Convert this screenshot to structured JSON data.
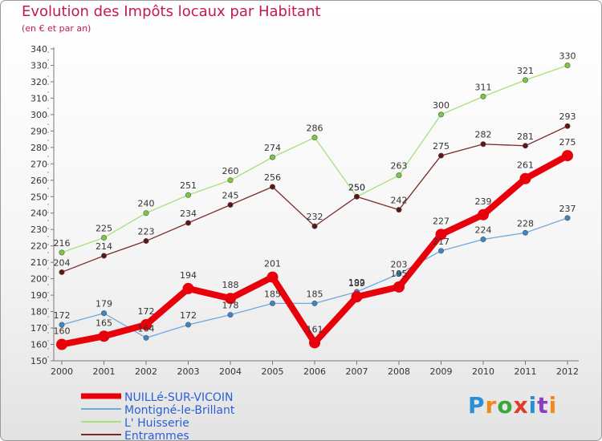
{
  "header": {
    "title": "Evolution des Impôts locaux par Habitant",
    "subtitle": "(en € et par an)"
  },
  "logo": {
    "text": "Proxiti",
    "colors": [
      "#2b8fd6",
      "#f08a1c",
      "#3aa83a",
      "#e23b2c",
      "#2b8fd6",
      "#8a3fbf",
      "#f08a1c"
    ]
  },
  "chart_data": {
    "type": "line",
    "x": [
      "2000",
      "2001",
      "2002",
      "2003",
      "2004",
      "2005",
      "2006",
      "2007",
      "2008",
      "2009",
      "2010",
      "2011",
      "2012"
    ],
    "ylim": [
      150,
      340
    ],
    "yticks": [
      150,
      160,
      170,
      180,
      190,
      200,
      210,
      220,
      230,
      240,
      250,
      260,
      270,
      280,
      290,
      300,
      310,
      320,
      330,
      340
    ],
    "grid": false,
    "legend_position": "bottom-left",
    "series": [
      {
        "name": "NUILLé-SUR-VICOIN",
        "color": "#e8000b",
        "marker": "#e8000b",
        "emphasis": true,
        "values": [
          160,
          165,
          172,
          194,
          188,
          201,
          161,
          189,
          195,
          227,
          239,
          261,
          275
        ]
      },
      {
        "name": "Montigné-le-Brillant",
        "color": "#6fa8dc",
        "marker": "#3d85c6",
        "values": [
          172,
          179,
          164,
          172,
          178,
          185,
          185,
          192,
          203,
          217,
          224,
          228,
          237
        ]
      },
      {
        "name": "L' Huisserie",
        "color": "#a8e07a",
        "marker": "#7ac943",
        "values": [
          216,
          225,
          240,
          251,
          260,
          274,
          286,
          250,
          263,
          300,
          311,
          321,
          330
        ]
      },
      {
        "name": "Entrammes",
        "color": "#7b2a2a",
        "marker": "#5c1414",
        "values": [
          204,
          214,
          223,
          234,
          245,
          256,
          232,
          250,
          242,
          275,
          282,
          281,
          293
        ]
      }
    ]
  }
}
